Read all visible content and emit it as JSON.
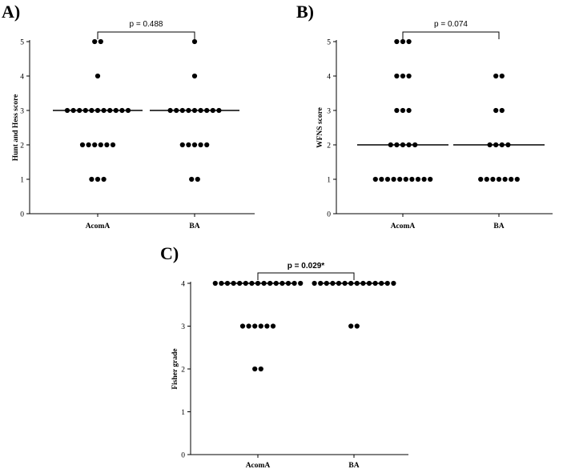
{
  "chart_data": [
    {
      "type": "scatter",
      "panel": "A)",
      "ylabel": "Hunt and Hess score",
      "ylim": [
        0,
        5
      ],
      "yticks": [
        "0",
        "1",
        "2",
        "3",
        "4",
        "5"
      ],
      "categories": [
        "AcomA",
        "BA"
      ],
      "series": [
        {
          "category": "AcomA",
          "counts": {
            "1": 3,
            "2": 6,
            "3": 11,
            "4": 1,
            "5": 2
          },
          "median": 3
        },
        {
          "category": "BA",
          "counts": {
            "1": 2,
            "2": 5,
            "3": 9,
            "4": 1,
            "5": 1
          },
          "median": 3
        }
      ],
      "annotation": "p = 0.488",
      "annotation_bold": false
    },
    {
      "type": "scatter",
      "panel": "B)",
      "ylabel": "WFNS score",
      "ylim": [
        0,
        5
      ],
      "yticks": [
        "0",
        "1",
        "2",
        "3",
        "4",
        "5"
      ],
      "categories": [
        "AcomA",
        "BA"
      ],
      "series": [
        {
          "category": "AcomA",
          "counts": {
            "1": 10,
            "2": 5,
            "3": 3,
            "4": 3,
            "5": 3
          },
          "median": 2
        },
        {
          "category": "BA",
          "counts": {
            "1": 7,
            "2": 4,
            "3": 2,
            "4": 2,
            "5": 0
          },
          "median": 2
        }
      ],
      "annotation": "p = 0.074",
      "annotation_bold": false
    },
    {
      "type": "scatter",
      "panel": "C)",
      "ylabel": "Fisher grade",
      "ylim": [
        0,
        4
      ],
      "yticks": [
        "0",
        "1",
        "2",
        "3",
        "4"
      ],
      "categories": [
        "AcomA",
        "BA"
      ],
      "series": [
        {
          "category": "AcomA",
          "counts": {
            "1": 0,
            "2": 2,
            "3": 6,
            "4": 15
          },
          "median": 4
        },
        {
          "category": "BA",
          "counts": {
            "1": 0,
            "2": 0,
            "3": 2,
            "4": 14
          },
          "median": 4
        }
      ],
      "annotation": "p = 0.029*",
      "annotation_bold": true
    }
  ]
}
